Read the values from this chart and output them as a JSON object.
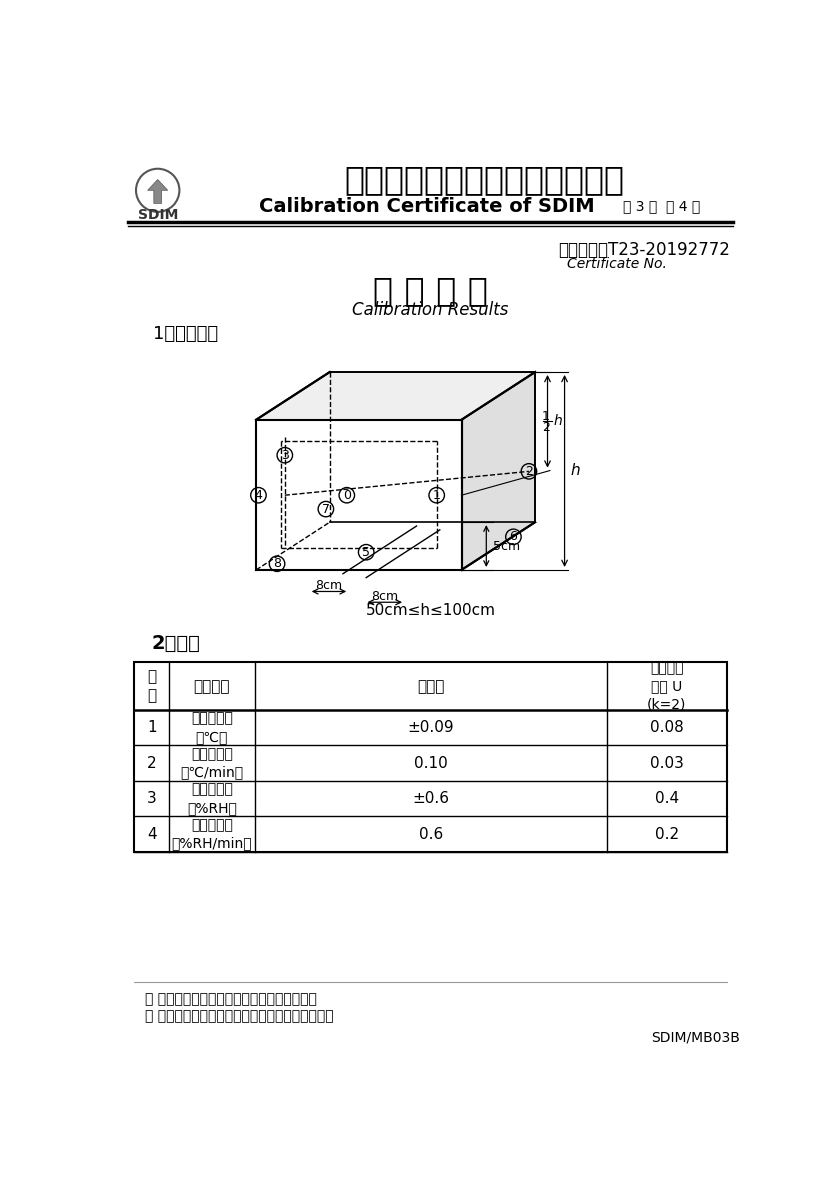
{
  "title_cn": "山东省计量科学研究院校准证书",
  "title_en": "Calibration Certificate of SDIM",
  "page_info": "第 3 页  共 4 页",
  "cert_no_label": "证书编号：",
  "cert_no": "T23-20192772",
  "cert_no_en": "Certificate No.",
  "section1_title": "校 准 结 果",
  "section1_subtitle": "Calibration Results",
  "subsection1": "1、布点图：",
  "dimension_note": "50cm≤h≤100cm",
  "subsection2": "2、数据",
  "table_headers": [
    "序\n号",
    "校准项目",
    "校准值",
    "扩展不确\n定度 U\n(k=2)"
  ],
  "table_rows": [
    [
      "1",
      "温度波动度\n（℃）",
      "±0.09",
      "0.08"
    ],
    [
      "2",
      "温度变化率\n（℃/min）",
      "0.10",
      "0.03"
    ],
    [
      "3",
      "湿度波动度\n（%RH）",
      "±0.6",
      "0.4"
    ],
    [
      "4",
      "湿度变化率\n（%RH/min）",
      "0.6",
      "0.2"
    ]
  ],
  "footer_line1": "＊ 未经本院书面批准，不得部分复印此证书。",
  "footer_line2": "＊ 本证书的校准结果仅对所校准的计量器具有效。",
  "footer_code": "SDIM/MB03B",
  "bg_color": "#ffffff",
  "text_color": "#000000"
}
